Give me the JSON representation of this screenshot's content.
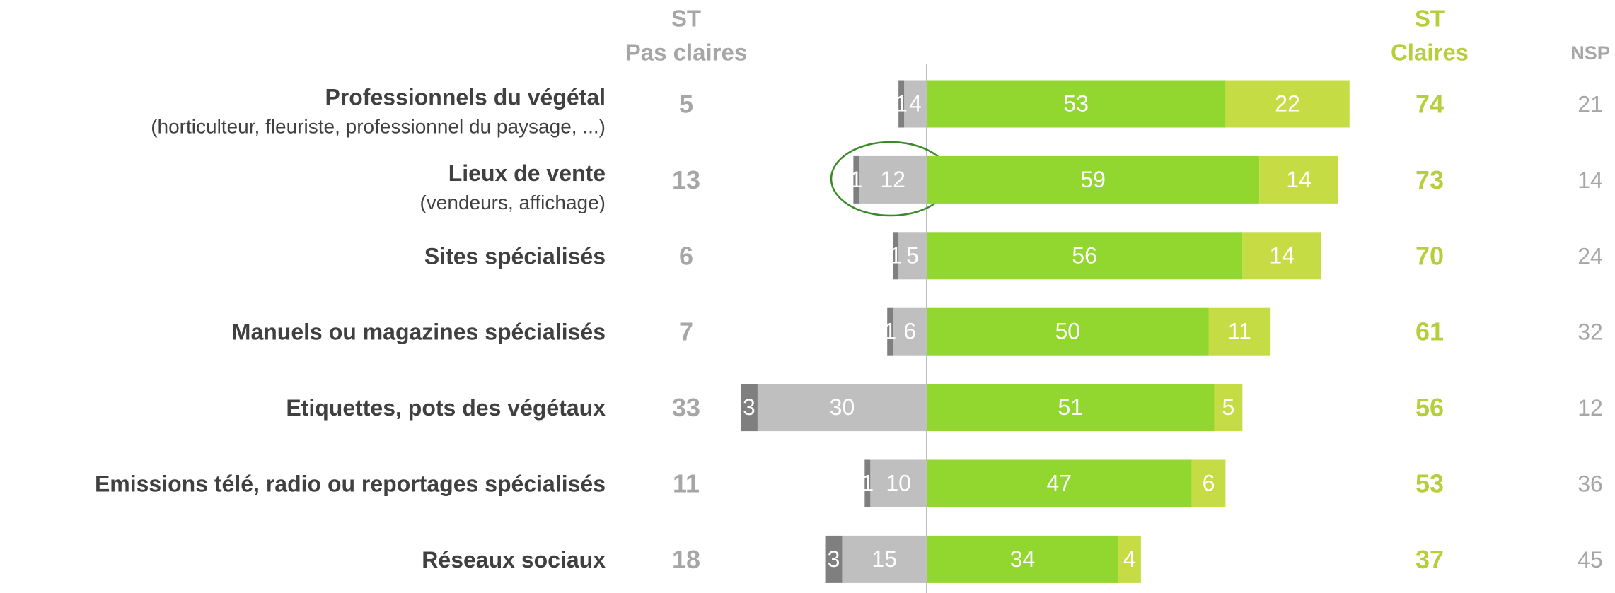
{
  "chart_data": {
    "type": "diverging_bar",
    "categories": [
      {
        "label": "Professionnels du végétal",
        "sublabel": "(horticulteur, fleuriste, professionnel du paysage, ...)"
      },
      {
        "label": "Lieux de vente",
        "sublabel": "(vendeurs, affichage)"
      },
      {
        "label": "Sites spécialisés",
        "sublabel": null
      },
      {
        "label": "Manuels ou magazines spécialisés",
        "sublabel": null
      },
      {
        "label": "Etiquettes, pots des végétaux",
        "sublabel": null
      },
      {
        "label": "Emissions télé, radio ou reportages spécialisés",
        "sublabel": null
      },
      {
        "label": "Réseaux sociaux",
        "sublabel": null
      }
    ],
    "series": [
      {
        "side": "negative",
        "color": "#7f7f7f",
        "values": [
          1,
          1,
          1,
          1,
          3,
          1,
          3
        ]
      },
      {
        "side": "negative",
        "color": "#bfbfbf",
        "values": [
          4,
          12,
          5,
          6,
          30,
          10,
          15
        ]
      },
      {
        "side": "positive",
        "color": "#92d630",
        "values": [
          53,
          59,
          56,
          50,
          51,
          47,
          34
        ]
      },
      {
        "side": "positive",
        "color": "#c5dc45",
        "values": [
          22,
          14,
          14,
          11,
          5,
          6,
          4
        ]
      }
    ],
    "columns": [
      {
        "header": [
          "ST",
          "Pas claires"
        ],
        "color": "#a6a6a6",
        "values": [
          5,
          13,
          6,
          7,
          33,
          11,
          18
        ]
      },
      {
        "header": [
          "ST",
          "Claires"
        ],
        "color": "#b5cf3a",
        "values": [
          74,
          73,
          70,
          61,
          56,
          53,
          37
        ]
      },
      {
        "header": [
          "NSP"
        ],
        "color": "#a6a6a6",
        "values": [
          21,
          14,
          24,
          32,
          12,
          36,
          45
        ]
      }
    ]
  }
}
